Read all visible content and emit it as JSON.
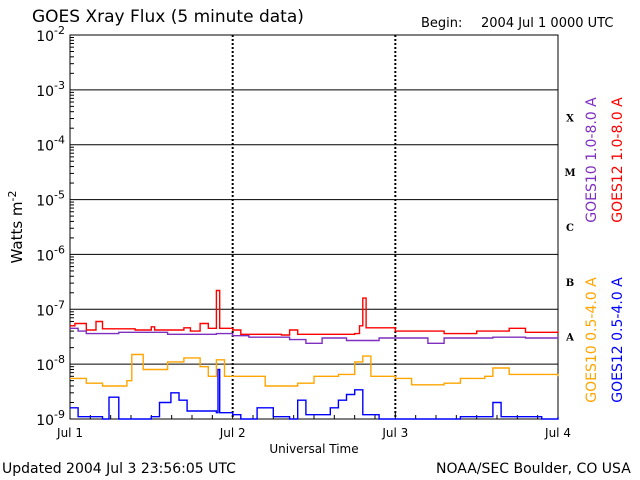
{
  "header": {
    "title": "GOES Xray Flux (5 minute data)",
    "begin_label": "Begin:",
    "begin_value": "2004 Jul 1 0000 UTC"
  },
  "footer": {
    "updated": "Updated 2004 Jul  3 23:56:05 UTC",
    "source": "NOAA/SEC Boulder, CO USA"
  },
  "chart_data": {
    "type": "line",
    "title": "GOES Xray Flux (5 minute data)",
    "xlabel": "Universal Time",
    "ylabel": "Watts m",
    "ylabel_sup": "-2",
    "y_scale": "log",
    "ylim": [
      1e-09,
      0.01
    ],
    "xlim_days": [
      0,
      3
    ],
    "x_tick_labels": [
      "Jul 1",
      "Jul 2",
      "Jul 3",
      "Jul 4"
    ],
    "y_tick_labels": [
      {
        "base": "10",
        "exp": "-9"
      },
      {
        "base": "10",
        "exp": "-8"
      },
      {
        "base": "10",
        "exp": "-7"
      },
      {
        "base": "10",
        "exp": "-6"
      },
      {
        "base": "10",
        "exp": "-5"
      },
      {
        "base": "10",
        "exp": "-4"
      },
      {
        "base": "10",
        "exp": "-3"
      },
      {
        "base": "10",
        "exp": "-2"
      }
    ],
    "flare_classes": [
      "A",
      "B",
      "C",
      "M",
      "X"
    ],
    "grid": "horizontal lines at each decade; dotted vertical day separators",
    "colors": {
      "goes12_long": "#ff0000",
      "goes10_long": "#7f2fbf",
      "goes10_short": "#ffa500",
      "goes12_short": "#0000ff"
    },
    "series": [
      {
        "name": "GOES12 1.0-8.0 A",
        "color_key": "goes12_long",
        "points": [
          [
            0,
            5e-08
          ],
          [
            0.03,
            5.5e-08
          ],
          [
            0.1,
            4.2e-08
          ],
          [
            0.16,
            6e-08
          ],
          [
            0.2,
            4.4e-08
          ],
          [
            0.4,
            4.2e-08
          ],
          [
            0.5,
            4.8e-08
          ],
          [
            0.52,
            4.2e-08
          ],
          [
            0.7,
            4.6e-08
          ],
          [
            0.74,
            4e-08
          ],
          [
            0.8,
            5.5e-08
          ],
          [
            0.85,
            4.5e-08
          ],
          [
            0.88,
            4.5e-08
          ],
          [
            0.9,
            2.2e-07
          ],
          [
            0.92,
            4.5e-08
          ],
          [
            1.0,
            4.2e-08
          ],
          [
            1.05,
            3.5e-08
          ],
          [
            1.3,
            3.4e-08
          ],
          [
            1.35,
            4.2e-08
          ],
          [
            1.4,
            3.5e-08
          ],
          [
            1.75,
            3.6e-08
          ],
          [
            1.78,
            5e-08
          ],
          [
            1.8,
            1.6e-07
          ],
          [
            1.82,
            4.6e-08
          ],
          [
            2.0,
            4e-08
          ],
          [
            2.3,
            3.6e-08
          ],
          [
            2.5,
            4e-08
          ],
          [
            2.7,
            4.5e-08
          ],
          [
            2.8,
            3.8e-08
          ],
          [
            3.0,
            4e-08
          ]
        ]
      },
      {
        "name": "GOES10 1.0-8.0 A",
        "color_key": "goes10_long",
        "points": [
          [
            0,
            4.5e-08
          ],
          [
            0.05,
            4e-08
          ],
          [
            0.1,
            3.6e-08
          ],
          [
            0.3,
            3.8e-08
          ],
          [
            0.6,
            3.5e-08
          ],
          [
            0.9,
            3.6e-08
          ],
          [
            1.0,
            3.3e-08
          ],
          [
            1.1,
            3.1e-08
          ],
          [
            1.35,
            2.8e-08
          ],
          [
            1.45,
            2.4e-08
          ],
          [
            1.55,
            3e-08
          ],
          [
            1.7,
            2.7e-08
          ],
          [
            1.9,
            3e-08
          ],
          [
            2.1,
            3e-08
          ],
          [
            2.2,
            2.4e-08
          ],
          [
            2.3,
            3e-08
          ],
          [
            2.6,
            3.1e-08
          ],
          [
            2.8,
            3e-08
          ],
          [
            3.0,
            3.2e-08
          ]
        ]
      },
      {
        "name": "GOES10 0.5-4.0 A",
        "color_key": "goes10_short",
        "points": [
          [
            0,
            5.5e-09
          ],
          [
            0.1,
            4.5e-09
          ],
          [
            0.2,
            4e-09
          ],
          [
            0.35,
            5e-09
          ],
          [
            0.38,
            1.5e-08
          ],
          [
            0.45,
            8e-09
          ],
          [
            0.55,
            8e-09
          ],
          [
            0.6,
            1.1e-08
          ],
          [
            0.7,
            1.3e-08
          ],
          [
            0.8,
            9e-09
          ],
          [
            0.85,
            6e-09
          ],
          [
            0.9,
            1.2e-08
          ],
          [
            0.95,
            6e-09
          ],
          [
            1.1,
            6e-09
          ],
          [
            1.2,
            4e-09
          ],
          [
            1.4,
            4.5e-09
          ],
          [
            1.5,
            6e-09
          ],
          [
            1.65,
            6.5e-09
          ],
          [
            1.75,
            1.1e-08
          ],
          [
            1.8,
            1.4e-08
          ],
          [
            1.85,
            6e-09
          ],
          [
            2.0,
            5.5e-09
          ],
          [
            2.1,
            4.2e-09
          ],
          [
            2.3,
            4.5e-09
          ],
          [
            2.4,
            5.5e-09
          ],
          [
            2.55,
            6e-09
          ],
          [
            2.6,
            8.5e-09
          ],
          [
            2.7,
            6.5e-09
          ],
          [
            2.9,
            6.5e-09
          ],
          [
            3.0,
            6e-09
          ]
        ]
      },
      {
        "name": "GOES12 0.5-4.0 A",
        "color_key": "goes12_short",
        "points": [
          [
            0,
            1.6e-09
          ],
          [
            0.05,
            1.1e-09
          ],
          [
            0.2,
            1e-09
          ],
          [
            0.24,
            2.5e-09
          ],
          [
            0.3,
            1e-09
          ],
          [
            0.5,
            1.1e-09
          ],
          [
            0.55,
            2e-09
          ],
          [
            0.62,
            3e-09
          ],
          [
            0.67,
            2.2e-09
          ],
          [
            0.72,
            1.4e-09
          ],
          [
            0.9,
            1.3e-09
          ],
          [
            0.91,
            8e-09
          ],
          [
            0.92,
            1.3e-09
          ],
          [
            1.0,
            1.2e-09
          ],
          [
            1.05,
            1e-09
          ],
          [
            1.15,
            1.6e-09
          ],
          [
            1.25,
            1.1e-09
          ],
          [
            1.35,
            1e-09
          ],
          [
            1.4,
            2.2e-09
          ],
          [
            1.45,
            1.2e-09
          ],
          [
            1.6,
            1.6e-09
          ],
          [
            1.65,
            2.2e-09
          ],
          [
            1.7,
            2.8e-09
          ],
          [
            1.75,
            3.4e-09
          ],
          [
            1.8,
            1.2e-09
          ],
          [
            1.9,
            1e-09
          ],
          [
            2.3,
            1e-09
          ],
          [
            2.4,
            1.1e-09
          ],
          [
            2.55,
            1.1e-09
          ],
          [
            2.6,
            2e-09
          ],
          [
            2.65,
            1.1e-09
          ],
          [
            2.9,
            1e-09
          ],
          [
            3.0,
            1.1e-09
          ]
        ]
      }
    ]
  }
}
